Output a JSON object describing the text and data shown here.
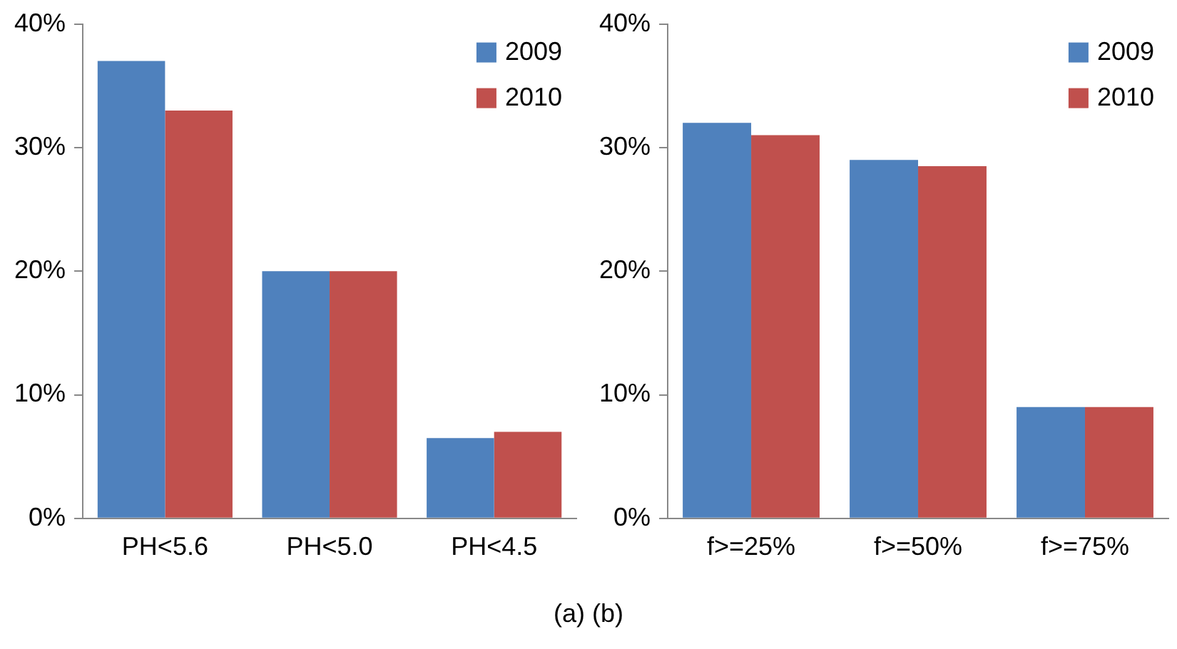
{
  "chart_data": [
    {
      "type": "bar",
      "categories": [
        "PH<5.6",
        "PH<5.0",
        "PH<4.5"
      ],
      "series": [
        {
          "name": "2009",
          "color": "#4f81bd",
          "values": [
            37,
            20,
            6.5
          ]
        },
        {
          "name": "2010",
          "color": "#c0504d",
          "values": [
            33,
            20,
            7
          ]
        }
      ],
      "ylim": [
        0,
        40
      ],
      "yticks": [
        {
          "value": 0,
          "label": "0%"
        },
        {
          "value": 10,
          "label": "10%"
        },
        {
          "value": 20,
          "label": "20%"
        },
        {
          "value": 30,
          "label": "30%"
        },
        {
          "value": 40,
          "label": "40%"
        }
      ],
      "grid": false,
      "legend": "top right"
    },
    {
      "type": "bar",
      "categories": [
        "f>=25%",
        "f>=50%",
        "f>=75%"
      ],
      "series": [
        {
          "name": "2009",
          "color": "#4f81bd",
          "values": [
            32,
            29,
            9
          ]
        },
        {
          "name": "2010",
          "color": "#c0504d",
          "values": [
            31,
            28.5,
            9
          ]
        }
      ],
      "ylim": [
        0,
        40
      ],
      "yticks": [
        {
          "value": 0,
          "label": "0%"
        },
        {
          "value": 10,
          "label": "10%"
        },
        {
          "value": 20,
          "label": "20%"
        },
        {
          "value": 30,
          "label": "30%"
        },
        {
          "value": 40,
          "label": "40%"
        }
      ],
      "grid": false,
      "legend": "top right",
      "annotations": [
        "(a) (b)"
      ]
    }
  ]
}
